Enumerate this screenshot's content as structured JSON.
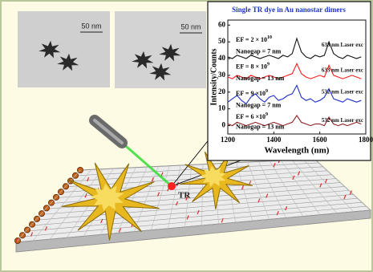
{
  "figure": {
    "tem_images": [
      {
        "scale_bar": "50 nm"
      },
      {
        "scale_bar": "50 nm"
      }
    ],
    "spot_label": "TR"
  },
  "chart_data": {
    "type": "line",
    "title": "Single TR dye in Au nanostar dimers",
    "x_label": "Wavelength (nm)",
    "y_label": "Intensity/Counts",
    "x": [
      1200,
      1220,
      1240,
      1260,
      1280,
      1300,
      1320,
      1340,
      1360,
      1380,
      1400,
      1420,
      1440,
      1460,
      1480,
      1500,
      1520,
      1540,
      1560,
      1580,
      1600,
      1620,
      1640,
      1660,
      1680,
      1700,
      1720,
      1740,
      1760,
      1780
    ],
    "xlim": [
      1200,
      1800
    ],
    "xticks": [
      1200,
      1400,
      1600,
      1800
    ],
    "ylim": [
      -5,
      63
    ],
    "yticks": [
      0,
      10,
      20,
      30,
      40,
      50,
      60
    ],
    "series": [
      {
        "name": "633 nm Laser exc",
        "color": "#111111",
        "values": [
          41,
          40,
          42,
          41,
          40,
          42,
          41,
          40,
          41,
          42,
          41,
          40,
          42,
          41,
          43,
          52,
          44,
          41,
          40,
          42,
          41,
          42,
          50,
          43,
          41,
          40,
          42,
          41,
          40,
          41
        ]
      },
      {
        "name": "633 nm Laser exc",
        "color": "#ff1a1a",
        "values": [
          29,
          28,
          30,
          29,
          28,
          30,
          29,
          28,
          29,
          30,
          29,
          28,
          29,
          30,
          31,
          37,
          31,
          29,
          28,
          29,
          30,
          29,
          36,
          30,
          29,
          28,
          29,
          30,
          29,
          28
        ]
      },
      {
        "name": "532 nm Laser exc",
        "color": "#1f2fc8",
        "values": [
          14,
          16,
          18,
          15,
          13,
          17,
          19,
          16,
          14,
          17,
          18,
          15,
          16,
          18,
          19,
          24,
          17,
          15,
          16,
          14,
          15,
          17,
          22,
          16,
          15,
          14,
          16,
          15,
          14,
          15
        ]
      },
      {
        "name": "532 nm Laser exc",
        "color": "#8b1a1a",
        "values": [
          1,
          0,
          2,
          1,
          0,
          1,
          2,
          1,
          0,
          1,
          2,
          1,
          0,
          1,
          2,
          6,
          2,
          1,
          0,
          1,
          1,
          0,
          5,
          1,
          0,
          1,
          0,
          1,
          2,
          1
        ]
      }
    ],
    "annotations": [
      {
        "ef": "EF = 2 × 10",
        "exp": "10",
        "gap": "Nanogap = 7 nm"
      },
      {
        "ef": "EF = 8 × 10",
        "exp": "9",
        "gap": "Nanogap = 13 nm"
      },
      {
        "ef": "EF = 9 ×10",
        "exp": "9",
        "gap": "Nanogap = 7 nm"
      },
      {
        "ef": "EF = 6 ×10",
        "exp": "9",
        "gap": "Nanogap = 13 nm"
      }
    ]
  }
}
